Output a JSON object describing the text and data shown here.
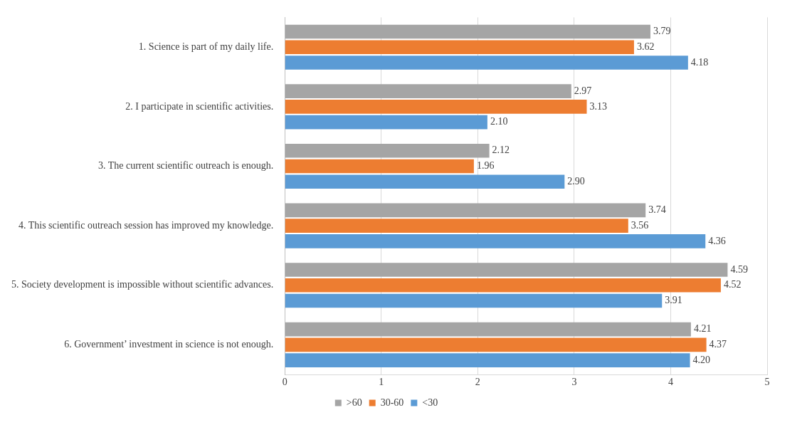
{
  "chart_data": {
    "type": "bar",
    "orientation": "horizontal",
    "categories": [
      "1. Science is part of my daily life.",
      "2. I participate in scientific activities.",
      "3. The current scientific outreach is enough.",
      "4. This scientific outreach session has improved my knowledge.",
      "5. Society development is impossible without scientific advances.",
      "6. Government’ investment in science is not enough."
    ],
    "series": [
      {
        "name": ">60",
        "color": "#a5a5a5",
        "values": [
          3.79,
          2.97,
          2.12,
          3.74,
          4.59,
          4.21
        ],
        "value_labels": [
          "3.79",
          "2.97",
          "2.12",
          "3.74",
          "4.59",
          "4.21"
        ]
      },
      {
        "name": "30-60",
        "color": "#ed7d31",
        "values": [
          3.62,
          3.13,
          1.96,
          3.56,
          4.52,
          4.37
        ],
        "value_labels": [
          "3.62",
          "3.13",
          "1.96",
          "3.56",
          "4.52",
          "4.37"
        ]
      },
      {
        "name": "<30",
        "color": "#5b9bd5",
        "values": [
          4.18,
          2.1,
          2.9,
          4.36,
          3.91,
          4.2
        ],
        "value_labels": [
          "4.18",
          "2.10",
          "2.90",
          "4.36",
          "3.91",
          "4.20"
        ]
      }
    ],
    "xlim": [
      0,
      5
    ],
    "xticks": [
      0,
      1,
      2,
      3,
      4,
      5
    ],
    "grid": "x",
    "legend": "bottom"
  }
}
